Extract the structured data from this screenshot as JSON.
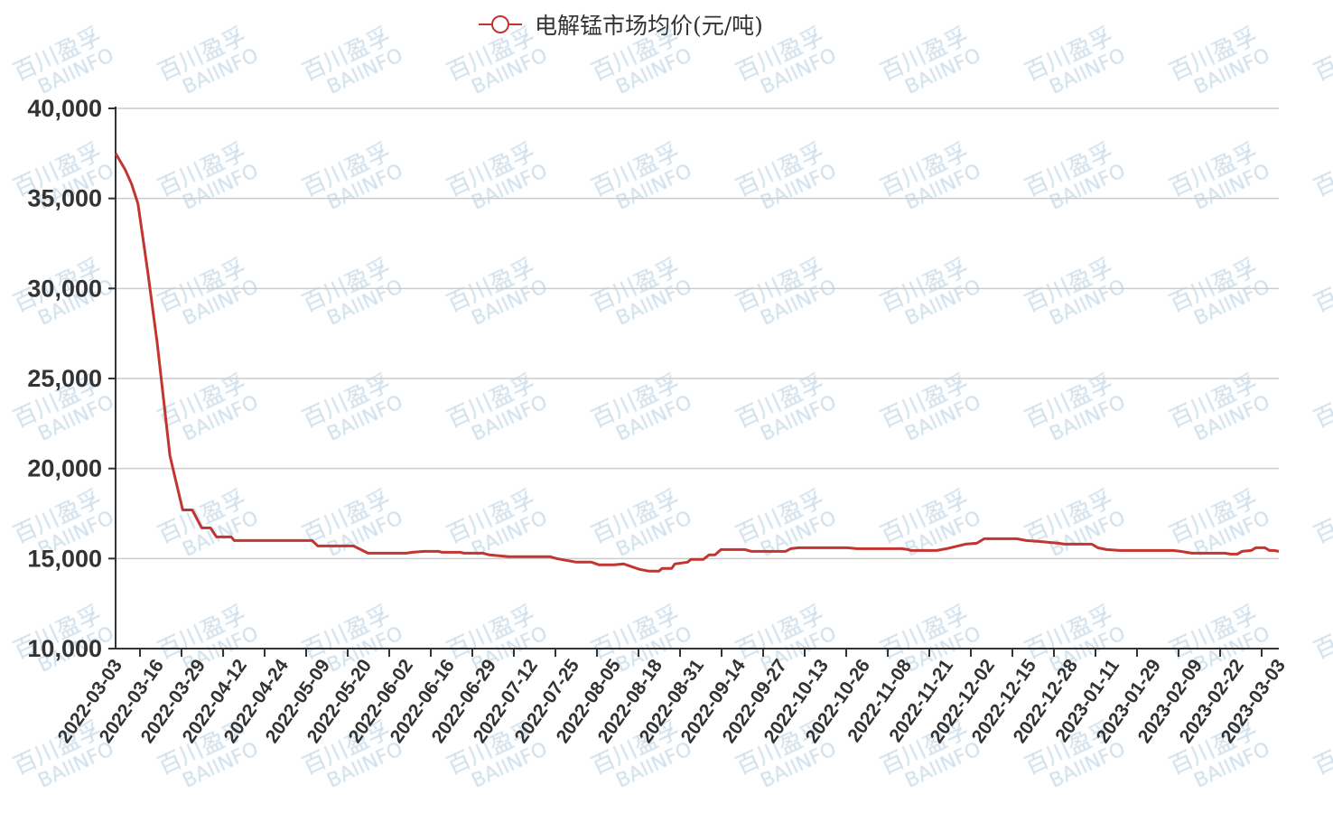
{
  "watermark": {
    "cn": "百川盈孚",
    "en": "BAIINFO"
  },
  "chart_data": {
    "type": "line",
    "title": "",
    "xlabel": "",
    "ylabel": "",
    "ylim": [
      10000,
      40000
    ],
    "yticks": [
      10000,
      15000,
      20000,
      25000,
      30000,
      35000,
      40000
    ],
    "ytick_labels": [
      "10,000",
      "15,000",
      "20,000",
      "25,000",
      "30,000",
      "35,000",
      "40,000"
    ],
    "grid": true,
    "legend_position": "top-center",
    "xtick_labels": [
      "2022-03-03",
      "2022-03-16",
      "2022-03-29",
      "2022-04-12",
      "2022-04-24",
      "2022-05-09",
      "2022-05-20",
      "2022-06-02",
      "2022-06-16",
      "2022-06-29",
      "2022-07-12",
      "2022-07-25",
      "2022-08-05",
      "2022-08-18",
      "2022-08-31",
      "2022-09-14",
      "2022-09-27",
      "2022-10-13",
      "2022-10-26",
      "2022-11-08",
      "2022-11-21",
      "2022-12-02",
      "2022-12-15",
      "2022-12-28",
      "2023-01-11",
      "2023-01-29",
      "2023-02-09",
      "2023-02-22",
      "2023-03-03"
    ],
    "series": [
      {
        "name": "电解锰市场均价(元/吨)",
        "color": "#c23531",
        "points": [
          [
            "2022-03-03",
            37500
          ],
          [
            "2022-03-06",
            36600
          ],
          [
            "2022-03-08",
            35800
          ],
          [
            "2022-03-10",
            34700
          ],
          [
            "2022-03-13",
            31000
          ],
          [
            "2022-03-16",
            27000
          ],
          [
            "2022-03-20",
            20700
          ],
          [
            "2022-03-24",
            17700
          ],
          [
            "2022-03-27",
            17700
          ],
          [
            "2022-03-30",
            16700
          ],
          [
            "2022-04-02",
            16700
          ],
          [
            "2022-04-04",
            16200
          ],
          [
            "2022-04-09",
            16200
          ],
          [
            "2022-04-10",
            16000
          ],
          [
            "2022-05-05",
            16000
          ],
          [
            "2022-05-07",
            15700
          ],
          [
            "2022-05-17",
            15700
          ],
          [
            "2022-05-21",
            15300
          ],
          [
            "2022-06-02",
            15300
          ],
          [
            "2022-06-04",
            15350
          ],
          [
            "2022-06-08",
            15400
          ],
          [
            "2022-06-13",
            15400
          ],
          [
            "2022-06-14",
            15350
          ],
          [
            "2022-06-20",
            15350
          ],
          [
            "2022-06-21",
            15300
          ],
          [
            "2022-06-27",
            15300
          ],
          [
            "2022-06-29",
            15200
          ],
          [
            "2022-07-05",
            15100
          ],
          [
            "2022-07-18",
            15100
          ],
          [
            "2022-07-20",
            15000
          ],
          [
            "2022-07-23",
            14900
          ],
          [
            "2022-07-26",
            14800
          ],
          [
            "2022-07-30",
            14800
          ],
          [
            "2022-08-01",
            14650
          ],
          [
            "2022-08-05",
            14650
          ],
          [
            "2022-08-08",
            14700
          ],
          [
            "2022-08-13",
            14400
          ],
          [
            "2022-08-16",
            14300
          ],
          [
            "2022-08-19",
            14300
          ],
          [
            "2022-08-20",
            14450
          ],
          [
            "2022-08-23",
            14450
          ],
          [
            "2022-08-24",
            14700
          ],
          [
            "2022-08-28",
            14800
          ],
          [
            "2022-08-29",
            14950
          ],
          [
            "2022-09-02",
            14950
          ],
          [
            "2022-09-04",
            15200
          ],
          [
            "2022-09-06",
            15200
          ],
          [
            "2022-09-08",
            15500
          ],
          [
            "2022-09-16",
            15500
          ],
          [
            "2022-09-18",
            15400
          ],
          [
            "2022-09-29",
            15400
          ],
          [
            "2022-10-01",
            15550
          ],
          [
            "2022-10-04",
            15600
          ],
          [
            "2022-10-21",
            15600
          ],
          [
            "2022-10-24",
            15550
          ],
          [
            "2022-11-07",
            15550
          ],
          [
            "2022-11-09",
            15500
          ],
          [
            "2022-11-10",
            15450
          ],
          [
            "2022-11-18",
            15450
          ],
          [
            "2022-11-21",
            15550
          ],
          [
            "2022-11-23",
            15650
          ],
          [
            "2022-11-26",
            15800
          ],
          [
            "2022-11-29",
            15850
          ],
          [
            "2022-12-01",
            16100
          ],
          [
            "2022-12-11",
            16100
          ],
          [
            "2022-12-14",
            16000
          ],
          [
            "2022-12-18",
            15950
          ],
          [
            "2022-12-24",
            15850
          ],
          [
            "2022-12-26",
            15800
          ],
          [
            "2023-01-04",
            15800
          ],
          [
            "2023-01-06",
            15600
          ],
          [
            "2023-01-09",
            15500
          ],
          [
            "2023-01-14",
            15450
          ],
          [
            "2023-02-03",
            15450
          ],
          [
            "2023-02-05",
            15400
          ],
          [
            "2023-02-08",
            15300
          ],
          [
            "2023-02-18",
            15300
          ],
          [
            "2023-02-20",
            15250
          ],
          [
            "2023-02-22",
            15250
          ],
          [
            "2023-02-23",
            15400
          ],
          [
            "2023-02-25",
            15450
          ],
          [
            "2023-02-26",
            15600
          ],
          [
            "2023-02-28",
            15600
          ],
          [
            "2023-03-01",
            15450
          ],
          [
            "2023-03-02",
            15450
          ],
          [
            "2023-03-03",
            15400
          ]
        ]
      }
    ]
  }
}
